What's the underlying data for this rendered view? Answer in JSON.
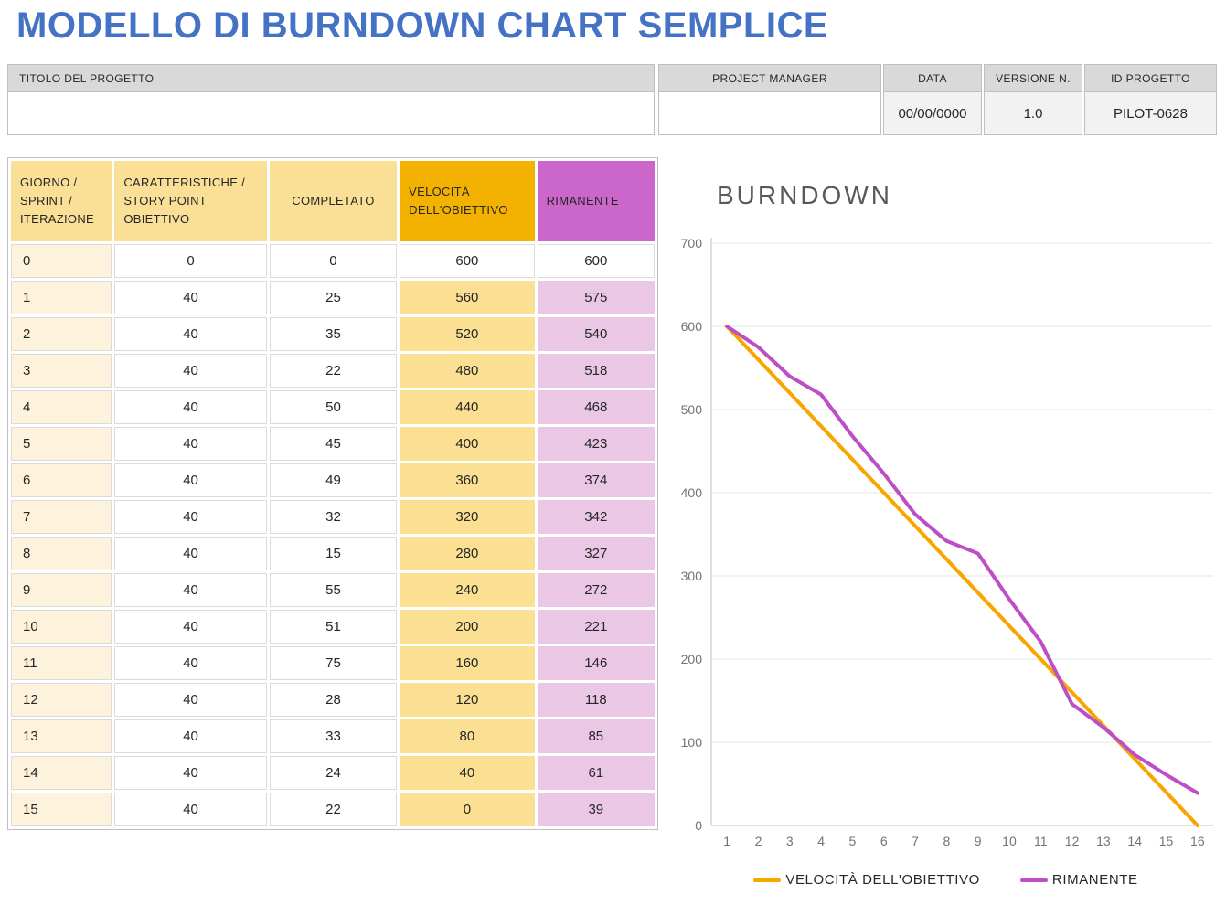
{
  "page_title": "MODELLO DI BURNDOWN CHART SEMPLICE",
  "info": {
    "fields": [
      {
        "label": "TITOLO DEL PROGETTO",
        "value": ""
      },
      {
        "label": "PROJECT MANAGER",
        "value": ""
      },
      {
        "label": "DATA",
        "value": "00/00/0000"
      },
      {
        "label": "VERSIONE N.",
        "value": "1.0"
      },
      {
        "label": "ID PROGETTO",
        "value": "PILOT-0628"
      }
    ]
  },
  "table": {
    "headers": [
      "GIORNO / SPRINT / ITERAZIONE",
      "CARATTERISTICHE / STORY POINT OBIETTIVO",
      "COMPLETATO",
      "VELOCITÀ DELL'OBIETTIVO",
      "RIMANENTE"
    ],
    "rows": [
      [
        "0",
        "0",
        "0",
        "600",
        "600"
      ],
      [
        "1",
        "40",
        "25",
        "560",
        "575"
      ],
      [
        "2",
        "40",
        "35",
        "520",
        "540"
      ],
      [
        "3",
        "40",
        "22",
        "480",
        "518"
      ],
      [
        "4",
        "40",
        "50",
        "440",
        "468"
      ],
      [
        "5",
        "40",
        "45",
        "400",
        "423"
      ],
      [
        "6",
        "40",
        "49",
        "360",
        "374"
      ],
      [
        "7",
        "40",
        "32",
        "320",
        "342"
      ],
      [
        "8",
        "40",
        "15",
        "280",
        "327"
      ],
      [
        "9",
        "40",
        "55",
        "240",
        "272"
      ],
      [
        "10",
        "40",
        "51",
        "200",
        "221"
      ],
      [
        "11",
        "40",
        "75",
        "160",
        "146"
      ],
      [
        "12",
        "40",
        "28",
        "120",
        "118"
      ],
      [
        "13",
        "40",
        "33",
        "80",
        "85"
      ],
      [
        "14",
        "40",
        "24",
        "40",
        "61"
      ],
      [
        "15",
        "40",
        "22",
        "0",
        "39"
      ]
    ]
  },
  "chart_data": {
    "type": "line",
    "title": "BURNDOWN",
    "x": [
      1,
      2,
      3,
      4,
      5,
      6,
      7,
      8,
      9,
      10,
      11,
      12,
      13,
      14,
      15,
      16
    ],
    "series": [
      {
        "name": "VELOCITÀ DELL'OBIETTIVO",
        "color": "#F8A500",
        "values": [
          600,
          560,
          520,
          480,
          440,
          400,
          360,
          320,
          280,
          240,
          200,
          160,
          120,
          80,
          40,
          0
        ]
      },
      {
        "name": "RIMANENTE",
        "color": "#BD4EC6",
        "values": [
          600,
          575,
          540,
          518,
          468,
          423,
          374,
          342,
          327,
          272,
          221,
          146,
          118,
          85,
          61,
          39
        ]
      }
    ],
    "ylim": [
      0,
      700
    ],
    "ytick_step": 100,
    "grid": true,
    "legend_position": "bottom"
  },
  "colors": {
    "title_blue": "#4472C4",
    "info_header_grey": "#D9D9D9",
    "info_value_grey": "#F2F2F2",
    "header_gold_light": "#FAE096",
    "header_orange": "#F3B200",
    "header_purple": "#CB66CB",
    "cell_cream": "#FDF3DC",
    "cell_gold": "#FBE094",
    "cell_pink": "#EBC7E6",
    "grid_line": "#E6E6E6",
    "axis_line": "#BFBFBF",
    "tick_text": "#737373",
    "chart_title_grey": "#595959"
  }
}
